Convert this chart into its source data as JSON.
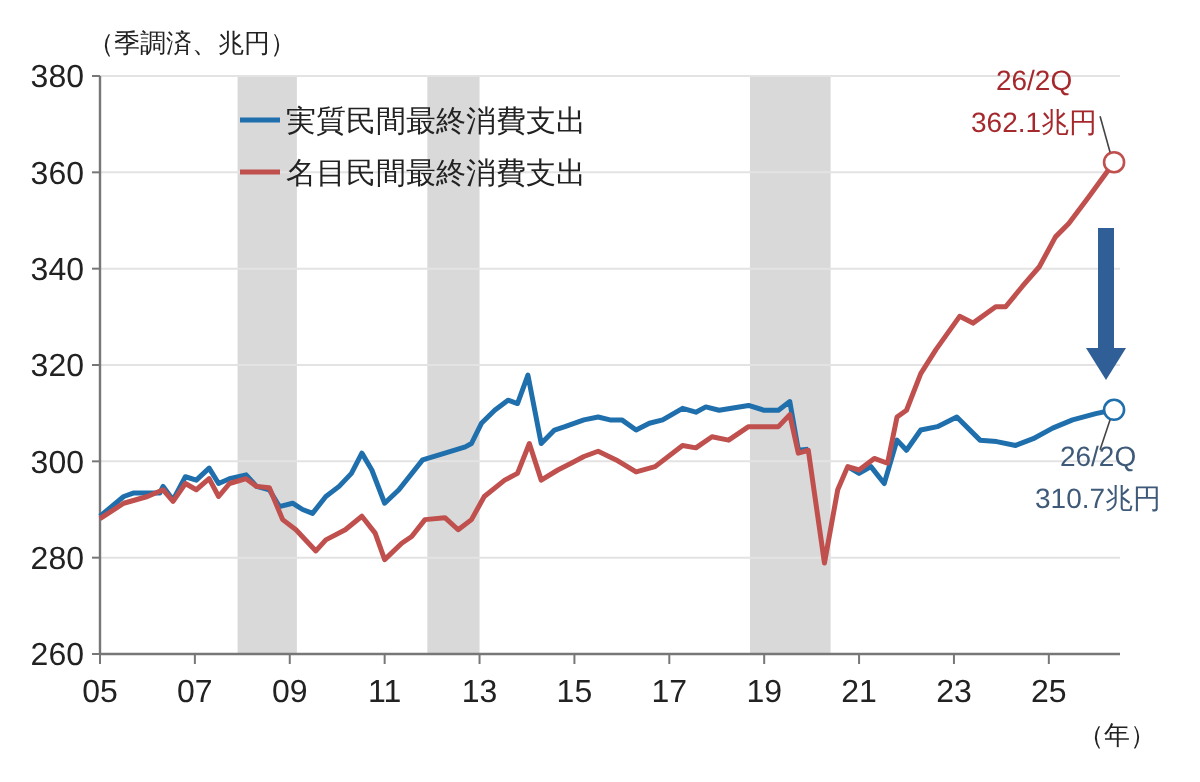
{
  "chart_data": {
    "type": "line",
    "ylabel": "（季調済、兆円）",
    "xlabel": "（年）",
    "xlim": [
      2005,
      2026.5
    ],
    "ylim": [
      260,
      380
    ],
    "xticks": [
      {
        "value": 2005,
        "label": "05"
      },
      {
        "value": 2007,
        "label": "07"
      },
      {
        "value": 2009,
        "label": "09"
      },
      {
        "value": 2011,
        "label": "11"
      },
      {
        "value": 2013,
        "label": "13"
      },
      {
        "value": 2015,
        "label": "15"
      },
      {
        "value": 2017,
        "label": "17"
      },
      {
        "value": 2019,
        "label": "19"
      },
      {
        "value": 2021,
        "label": "21"
      },
      {
        "value": 2023,
        "label": "23"
      },
      {
        "value": 2025,
        "label": "25"
      }
    ],
    "yticks": [
      260,
      280,
      300,
      320,
      340,
      360,
      380
    ],
    "grid": "y",
    "legend": "top left",
    "marker": "none",
    "line_style": "solid",
    "bands": [
      {
        "axis": "x",
        "from": 2007.9,
        "to": 2009.15,
        "color": "#d9d9d9"
      },
      {
        "axis": "x",
        "from": 2011.9,
        "to": 2013.0,
        "color": "#d9d9d9"
      },
      {
        "axis": "x",
        "from": 2018.7,
        "to": 2020.4,
        "color": "#d9d9d9"
      }
    ],
    "series": [
      {
        "name": "実質民間最終消費支出",
        "color": "#1f6fad",
        "x": [
          2005,
          2005.5,
          2005.7,
          2006.26,
          2006.33,
          2006.54,
          2006.8,
          2007.03,
          2007.3,
          2007.5,
          2007.73,
          2008.08,
          2008.3,
          2008.57,
          2008.78,
          2009.06,
          2009.27,
          2009.48,
          2009.76,
          2010.04,
          2010.3,
          2010.52,
          2010.73,
          2011,
          2011.3,
          2011.8,
          2012.27,
          2012.7,
          2012.83,
          2013.04,
          2013.32,
          2013.6,
          2013.8,
          2014.02,
          2014.3,
          2014.58,
          2014.8,
          2015.2,
          2015.5,
          2015.75,
          2016,
          2016.3,
          2016.58,
          2016.86,
          2017.28,
          2017.56,
          2017.77,
          2018.05,
          2018.67,
          2019,
          2019.3,
          2019.54,
          2019.72,
          2019.93,
          2020.27,
          2020.55,
          2020.76,
          2021,
          2021.25,
          2021.53,
          2021.8,
          2022,
          2022.3,
          2022.65,
          2023.06,
          2023.55,
          2023.9,
          2024.3,
          2024.67,
          2025.08,
          2025.5,
          2025.99,
          2026.375
        ],
        "values": [
          288.6,
          292.7,
          293.4,
          293.4,
          294.8,
          292,
          296.8,
          296.1,
          298.6,
          295.4,
          296.4,
          297.2,
          294.8,
          294.1,
          290.6,
          291.3,
          290,
          289.2,
          292.7,
          294.8,
          297.5,
          301.7,
          298.2,
          291.3,
          294.1,
          300.3,
          301.7,
          303,
          303.7,
          307.9,
          310.6,
          312.7,
          312,
          317.9,
          303.7,
          306.5,
          307.2,
          308.6,
          309.2,
          308.6,
          308.6,
          306.5,
          307.9,
          308.6,
          311,
          310.2,
          311.3,
          310.6,
          311.6,
          310.6,
          310.6,
          312.4,
          302.3,
          302.5,
          null,
          null,
          298.9,
          297.5,
          298.9,
          295.4,
          304.4,
          302.3,
          306.5,
          307.2,
          309.2,
          304.4,
          304.1,
          303.3,
          304.7,
          306.9,
          308.6,
          309.9,
          310.7
        ]
      },
      {
        "name": "名目民間最終消費支出",
        "color": "#c0504d",
        "x": [
          2005,
          2005.5,
          2006,
          2006.33,
          2006.54,
          2006.8,
          2007.03,
          2007.3,
          2007.5,
          2007.73,
          2008.08,
          2008.3,
          2008.57,
          2008.85,
          2009.13,
          2009.55,
          2009.76,
          2010.17,
          2010.52,
          2010.8,
          2011,
          2011.36,
          2011.57,
          2011.85,
          2012.27,
          2012.55,
          2012.83,
          2013.1,
          2013.53,
          2013.8,
          2014.05,
          2014.3,
          2014.65,
          2014.93,
          2015.2,
          2015.5,
          2015.88,
          2016.3,
          2016.7,
          2017.28,
          2017.56,
          2017.9,
          2018.25,
          2018.67,
          2019.3,
          2019.54,
          2019.72,
          2019.93,
          2020.27,
          2020.55,
          2020.76,
          2021,
          2021.32,
          2021.6,
          2021.8,
          2022,
          2022.3,
          2022.62,
          2023.12,
          2023.4,
          2023.88,
          2024.09,
          2024.44,
          2024.8,
          2025.14,
          2025.42,
          2025.84,
          2026.375
        ],
        "values": [
          288.1,
          291.3,
          292.7,
          294.1,
          291.7,
          295.4,
          294.1,
          296.4,
          292.7,
          295.4,
          296.4,
          294.8,
          294.5,
          287.9,
          285.8,
          281.4,
          283.7,
          285.8,
          288.6,
          285.1,
          279.6,
          283,
          284.4,
          287.9,
          288.3,
          285.8,
          287.9,
          292.7,
          296.1,
          297.5,
          303.7,
          296.1,
          298.2,
          299.6,
          301,
          302.1,
          300.3,
          297.8,
          298.9,
          303.3,
          302.8,
          305.1,
          304.4,
          307.2,
          307.2,
          309.7,
          301.7,
          302.3,
          278.9,
          294.1,
          298.9,
          298.2,
          300.6,
          299.6,
          309.2,
          310.6,
          318.2,
          323.2,
          330.1,
          328.7,
          332.1,
          332.1,
          336.3,
          340.4,
          346.6,
          349.4,
          354.9,
          362.1
        ]
      }
    ],
    "annotations": [
      {
        "text": "26/2Q\n362.1兆円",
        "x": 2026.375,
        "y": 362.1
      },
      {
        "text": "26/2Q\n310.7兆円",
        "x": 2026.375,
        "y": 310.7
      }
    ]
  }
}
